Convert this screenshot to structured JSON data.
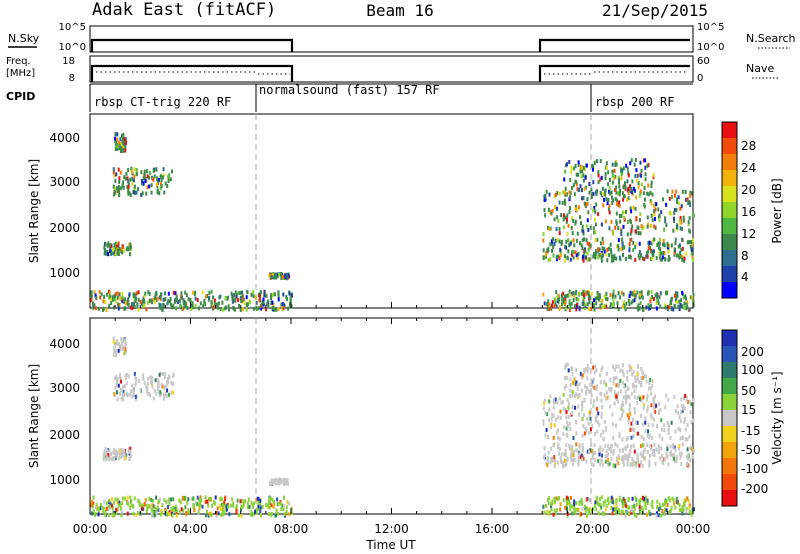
{
  "header": {
    "radar": "Adak East (fitACF)",
    "beam": "Beam 16",
    "date": "21/Sep/2015"
  },
  "top_panels": {
    "nsky_label": "N.Sky",
    "nsky_ticks": [
      "10^5",
      "10^0"
    ],
    "nsky_right_ticks": [
      "10^5",
      "10^0"
    ],
    "nsearch_label": "N.Search",
    "freq_label_1": "Freq.",
    "freq_label_2": "[MHz]",
    "freq_ticks": [
      "18",
      "8"
    ],
    "nave_ticks": [
      "60",
      "0"
    ],
    "nave_label": "Nave",
    "cpid_label": "CPID",
    "cpid_segments": [
      {
        "label": "rbsp CT-trig 220 RF",
        "start": 0.0,
        "end": 6.5
      },
      {
        "label": "normalsound (fast) 157 RF",
        "start": 6.5,
        "end": 20.0
      },
      {
        "label": "rbsp 200 RF",
        "start": 20.0,
        "end": 24.0
      }
    ]
  },
  "power_colorbar": {
    "label": "Power [dB]",
    "ticks": [
      "28",
      "24",
      "20",
      "16",
      "12",
      "8",
      "4"
    ],
    "colors": [
      "#0000ff",
      "#1e3fa8",
      "#2e6e8e",
      "#3c8a4b",
      "#4fb840",
      "#8ed62a",
      "#d8e21e",
      "#f2b40a",
      "#f27d0a",
      "#f24a0a",
      "#e81010"
    ]
  },
  "velocity_colorbar": {
    "label": "Velocity [m s⁻¹]",
    "ticks": [
      "200",
      "100",
      "50",
      "15",
      "-15",
      "-50",
      "-100",
      "-200"
    ],
    "colors": [
      "#1e2fb0",
      "#2a56b8",
      "#2f7a6e",
      "#43a84a",
      "#8bd23a",
      "#c8c8c8",
      "#f2d21e",
      "#f2a50a",
      "#f2760a",
      "#f24a0a",
      "#e81010"
    ]
  },
  "axes": {
    "ylabel": "Slant Range [km]",
    "yticks": [
      "4000",
      "3000",
      "2000",
      "1000"
    ],
    "xlabel": "Time UT",
    "xticks": [
      "00:00",
      "04:00",
      "08:00",
      "12:00",
      "16:00",
      "20:00",
      "00:00"
    ]
  },
  "chart_data": {
    "type": "heatmap",
    "x_range_hours": [
      0,
      24
    ],
    "y_range_km": [
      180,
      4600
    ],
    "data_windows_hours": [
      [
        0.0,
        8.0
      ],
      [
        18.0,
        24.0
      ]
    ],
    "echo_bands": [
      {
        "t0": 0.5,
        "t1": 1.6,
        "r0": 1450,
        "r1": 1700
      },
      {
        "t0": 0.9,
        "t1": 3.3,
        "r0": 2800,
        "r1": 3400
      },
      {
        "t0": 0.9,
        "t1": 1.4,
        "r0": 3800,
        "r1": 4200
      },
      {
        "t0": 7.1,
        "t1": 7.9,
        "r0": 900,
        "r1": 1000
      },
      {
        "t0": 18.0,
        "t1": 24.0,
        "r0": 1300,
        "r1": 1800
      },
      {
        "t0": 18.0,
        "t1": 24.0,
        "r0": 1900,
        "r1": 2900
      },
      {
        "t0": 18.8,
        "t1": 22.4,
        "r0": 2800,
        "r1": 3600
      },
      {
        "t0": 0.0,
        "t1": 8.0,
        "r0": 180,
        "r1": 600
      },
      {
        "t0": 18.0,
        "t1": 24.0,
        "r0": 180,
        "r1": 600
      }
    ]
  }
}
